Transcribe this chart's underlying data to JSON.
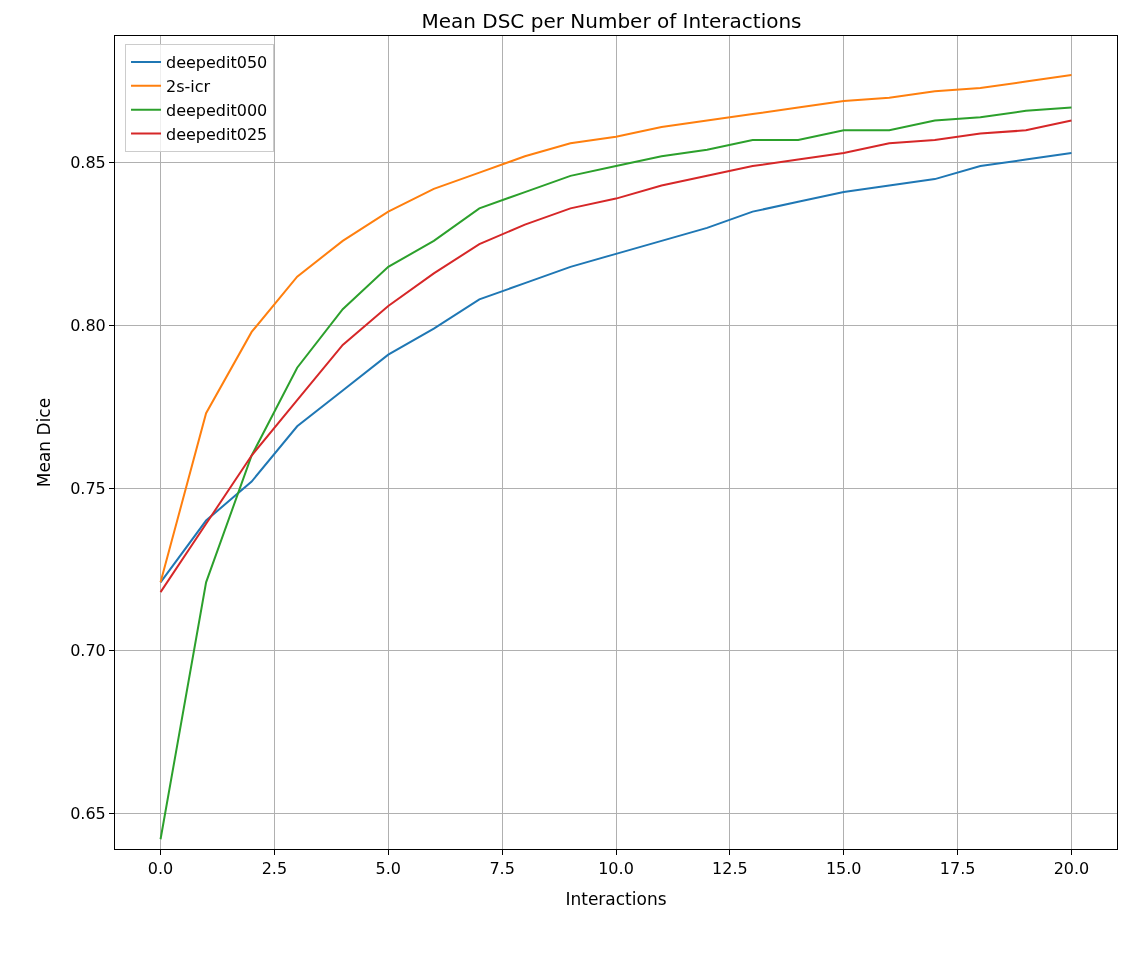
{
  "chart_data": {
    "type": "line",
    "title": "Mean DSC per Number of Interactions",
    "xlabel": "Interactions",
    "ylabel": "Mean Dice",
    "x": [
      0,
      1,
      2,
      3,
      4,
      5,
      6,
      7,
      8,
      9,
      10,
      11,
      12,
      13,
      14,
      15,
      16,
      17,
      18,
      19,
      20
    ],
    "series": [
      {
        "name": "deepedit050",
        "color": "#1f77b4",
        "values": [
          0.721,
          0.74,
          0.752,
          0.769,
          0.78,
          0.791,
          0.799,
          0.808,
          0.813,
          0.818,
          0.822,
          0.826,
          0.83,
          0.835,
          0.838,
          0.841,
          0.843,
          0.845,
          0.849,
          0.851,
          0.853
        ]
      },
      {
        "name": "2s-icr",
        "color": "#ff7f0e",
        "values": [
          0.721,
          0.773,
          0.798,
          0.815,
          0.826,
          0.835,
          0.842,
          0.847,
          0.852,
          0.856,
          0.858,
          0.861,
          0.863,
          0.865,
          0.867,
          0.869,
          0.87,
          0.872,
          0.873,
          0.875,
          0.877
        ]
      },
      {
        "name": "deepedit000",
        "color": "#2ca02c",
        "values": [
          0.642,
          0.721,
          0.76,
          0.787,
          0.805,
          0.818,
          0.826,
          0.836,
          0.841,
          0.846,
          0.849,
          0.852,
          0.854,
          0.857,
          0.857,
          0.86,
          0.86,
          0.863,
          0.864,
          0.866,
          0.867
        ]
      },
      {
        "name": "deepedit025",
        "color": "#d62728",
        "values": [
          0.718,
          0.739,
          0.76,
          0.777,
          0.794,
          0.806,
          0.816,
          0.825,
          0.831,
          0.836,
          0.839,
          0.843,
          0.846,
          0.849,
          0.851,
          0.853,
          0.856,
          0.857,
          0.859,
          0.86,
          0.863
        ]
      }
    ],
    "xlim": [
      -1,
      21
    ],
    "xticks": [
      {
        "value": 0,
        "label": "0.0"
      },
      {
        "value": 2.5,
        "label": "2.5"
      },
      {
        "value": 5,
        "label": "5.0"
      },
      {
        "value": 7.5,
        "label": "7.5"
      },
      {
        "value": 10,
        "label": "10.0"
      },
      {
        "value": 12.5,
        "label": "12.5"
      },
      {
        "value": 15,
        "label": "15.0"
      },
      {
        "value": 17.5,
        "label": "17.5"
      },
      {
        "value": 20,
        "label": "20.0"
      }
    ],
    "ylim": [
      0.639,
      0.889
    ],
    "yticks": [
      0.65,
      {
        "value": 0.7,
        "label": "0.70"
      },
      0.75,
      {
        "value": 0.8,
        "label": "0.80"
      },
      0.85
    ],
    "grid": true,
    "legend": "top left",
    "marker": "none",
    "line_style": "solid"
  }
}
